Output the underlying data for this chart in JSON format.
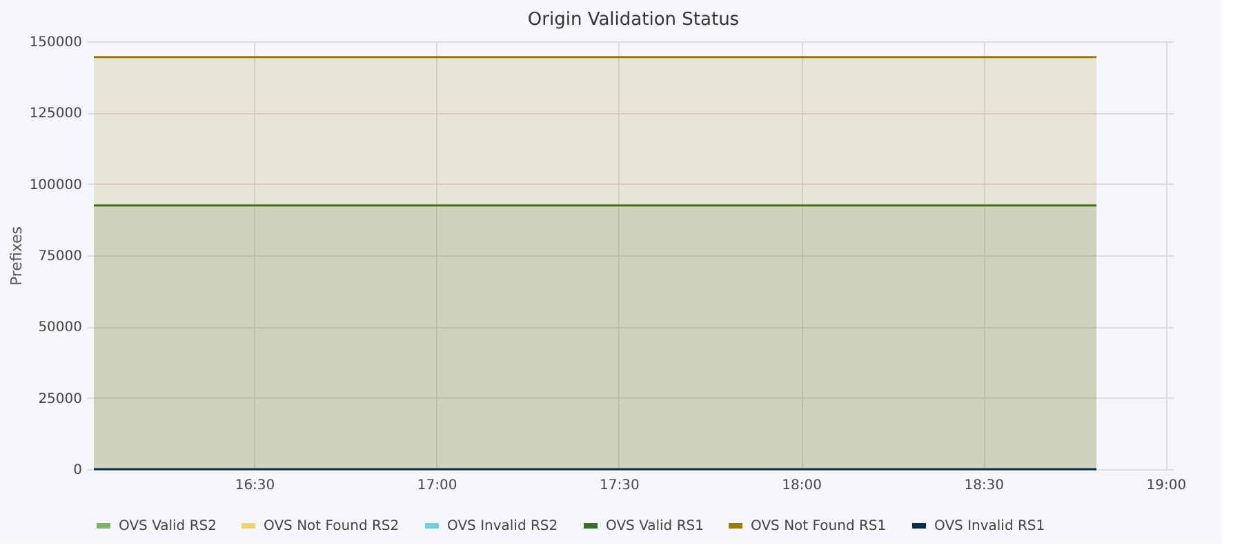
{
  "chart_data": {
    "type": "area",
    "title": "Origin Validation Status",
    "ylabel": "Prefixes",
    "x": [
      16.06,
      18.81
    ],
    "xlim": [
      16.06,
      19.02
    ],
    "xticks": [
      {
        "value": 16.5,
        "label": "16:30"
      },
      {
        "value": 17.0,
        "label": "17:00"
      },
      {
        "value": 17.5,
        "label": "17:30"
      },
      {
        "value": 18.0,
        "label": "18:00"
      },
      {
        "value": 18.5,
        "label": "18:30"
      },
      {
        "value": 19.0,
        "label": "19:00"
      }
    ],
    "ylim": [
      0,
      150000
    ],
    "yticks": [
      0,
      25000,
      50000,
      75000,
      100000,
      125000,
      150000
    ],
    "series": [
      {
        "name": "OVS Valid RS2",
        "color": "#7fb36b",
        "values": [
          null,
          null
        ]
      },
      {
        "name": "OVS Not Found RS2",
        "color": "#f2cf75",
        "values": [
          null,
          null
        ]
      },
      {
        "name": "OVS Invalid RS2",
        "color": "#6fcfdc",
        "values": [
          null,
          null
        ]
      },
      {
        "name": "OVS Valid RS1",
        "color": "#3d6b2c",
        "values": [
          92500,
          92500
        ]
      },
      {
        "name": "OVS Not Found RS1",
        "color": "#9a7b0a",
        "values": [
          144500,
          144500
        ]
      },
      {
        "name": "OVS Invalid RS1",
        "color": "#0d2b4c",
        "type": "line",
        "values": [
          0,
          0
        ]
      }
    ],
    "grid": true,
    "legend": "bottom"
  }
}
